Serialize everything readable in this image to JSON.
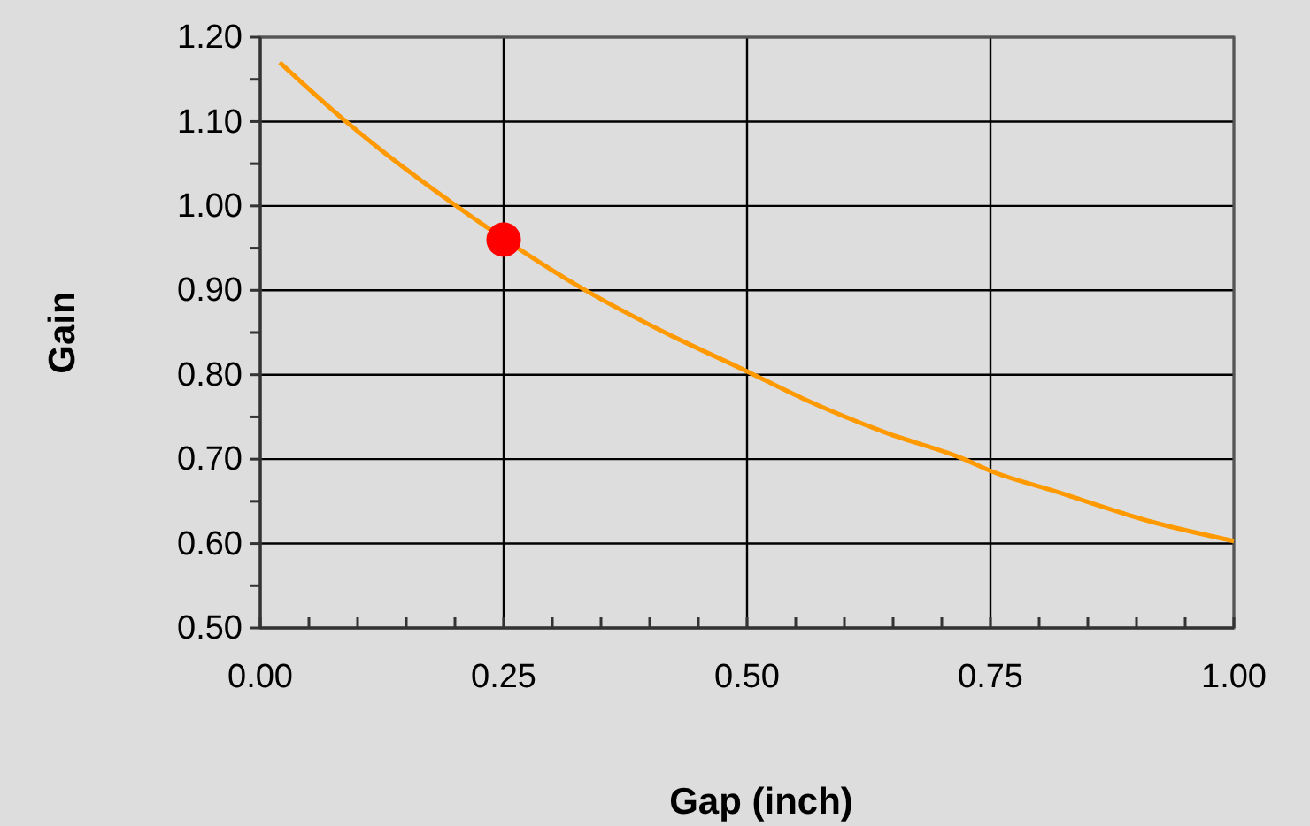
{
  "chart_data": {
    "type": "line",
    "xlabel": "Gap (inch)",
    "ylabel": "Gain",
    "xlim": [
      0,
      1
    ],
    "ylim": [
      0.5,
      1.2
    ],
    "xticks": [
      {
        "value": 0,
        "label": "0.00"
      },
      {
        "value": 0.05,
        "label": null
      },
      {
        "value": 0.1,
        "label": null
      },
      {
        "value": 0.15,
        "label": null
      },
      {
        "value": 0.2,
        "label": null
      },
      {
        "value": 0.25,
        "label": "0.25"
      },
      {
        "value": 0.3,
        "label": null
      },
      {
        "value": 0.35,
        "label": null
      },
      {
        "value": 0.4,
        "label": null
      },
      {
        "value": 0.45,
        "label": null
      },
      {
        "value": 0.5,
        "label": "0.50"
      },
      {
        "value": 0.55,
        "label": null
      },
      {
        "value": 0.6,
        "label": null
      },
      {
        "value": 0.65,
        "label": null
      },
      {
        "value": 0.7,
        "label": null
      },
      {
        "value": 0.75,
        "label": "0.75"
      },
      {
        "value": 0.8,
        "label": null
      },
      {
        "value": 0.85,
        "label": null
      },
      {
        "value": 0.9,
        "label": null
      },
      {
        "value": 0.95,
        "label": null
      },
      {
        "value": 1,
        "label": "1.00"
      }
    ],
    "yticks": [
      {
        "value": 0.5,
        "label": "0.50"
      },
      {
        "value": 0.55,
        "label": null
      },
      {
        "value": 0.6,
        "label": "0.60"
      },
      {
        "value": 0.65,
        "label": null
      },
      {
        "value": 0.7,
        "label": "0.70"
      },
      {
        "value": 0.75,
        "label": null
      },
      {
        "value": 0.8,
        "label": "0.80"
      },
      {
        "value": 0.85,
        "label": null
      },
      {
        "value": 0.9,
        "label": "0.90"
      },
      {
        "value": 0.95,
        "label": null
      },
      {
        "value": 1,
        "label": "1.00"
      },
      {
        "value": 1.05,
        "label": null
      },
      {
        "value": 1.1,
        "label": "1.10"
      },
      {
        "value": 1.15,
        "label": null
      },
      {
        "value": 1.2,
        "label": "1.20"
      }
    ],
    "grid": true,
    "series": [
      {
        "color": "#ff9900",
        "marker": "none",
        "line_style": "solid",
        "x": [
          0.02,
          0.088,
          0.121,
          0.199,
          0.337,
          0.412,
          0.5,
          0.557,
          0.641,
          0.725,
          0.748,
          0.816,
          0.918,
          1.0
        ],
        "values": [
          1.17,
          1.1,
          1.069,
          1.002,
          0.898,
          0.852,
          0.804,
          0.772,
          0.732,
          0.699,
          0.687,
          0.662,
          0.625,
          0.603
        ]
      },
      {
        "type": "scatter",
        "color": "#ff0000",
        "marker": "circle",
        "x": [
          0.25
        ],
        "values": [
          0.96
        ]
      }
    ]
  }
}
